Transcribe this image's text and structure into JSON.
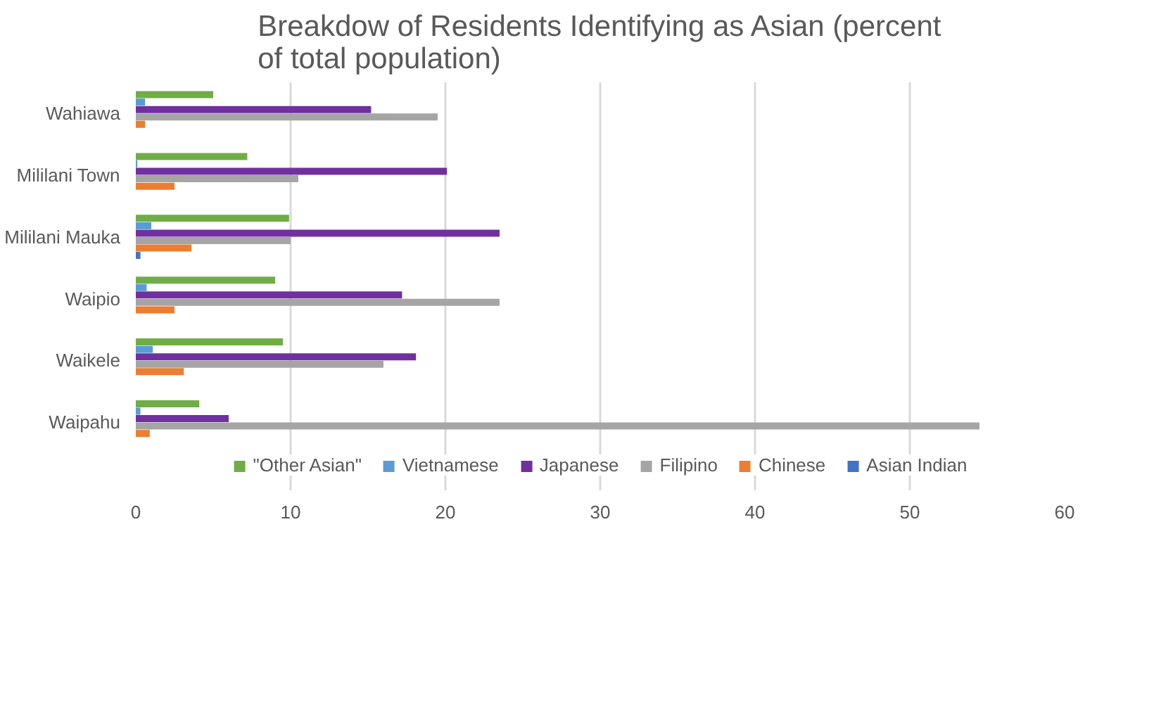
{
  "chart_data": {
    "type": "bar",
    "orientation": "horizontal",
    "title": "Breakdow of Residents Identifying as Asian (percent of total population)",
    "categories": [
      "Wahiawa",
      "Mililani Town",
      "Mililani Mauka",
      "Waipio",
      "Waikele",
      "Waipahu"
    ],
    "series": [
      {
        "name": "\"Other Asian\"",
        "color": "#70ad47",
        "values": [
          5.0,
          7.2,
          9.9,
          9.0,
          9.5,
          4.1
        ]
      },
      {
        "name": "Vietnamese",
        "color": "#5b9bd5",
        "values": [
          0.6,
          0.1,
          1.0,
          0.7,
          1.1,
          0.3
        ]
      },
      {
        "name": "Japanese",
        "color": "#7030a0",
        "values": [
          15.2,
          20.1,
          23.5,
          17.2,
          18.1,
          6.0
        ]
      },
      {
        "name": "Filipino",
        "color": "#a5a5a5",
        "values": [
          19.5,
          10.5,
          10.0,
          23.5,
          16.0,
          54.5
        ]
      },
      {
        "name": "Chinese",
        "color": "#ed7d31",
        "values": [
          0.6,
          2.5,
          3.6,
          2.5,
          3.1,
          0.9
        ]
      },
      {
        "name": "Asian Indian",
        "color": "#4472c4",
        "values": [
          0,
          0,
          0.3,
          0,
          0,
          0
        ]
      }
    ],
    "xlim": [
      0,
      60
    ],
    "xticks": [
      0,
      10,
      20,
      30,
      40,
      50,
      60
    ],
    "grid": "x",
    "legend": "bottom"
  }
}
